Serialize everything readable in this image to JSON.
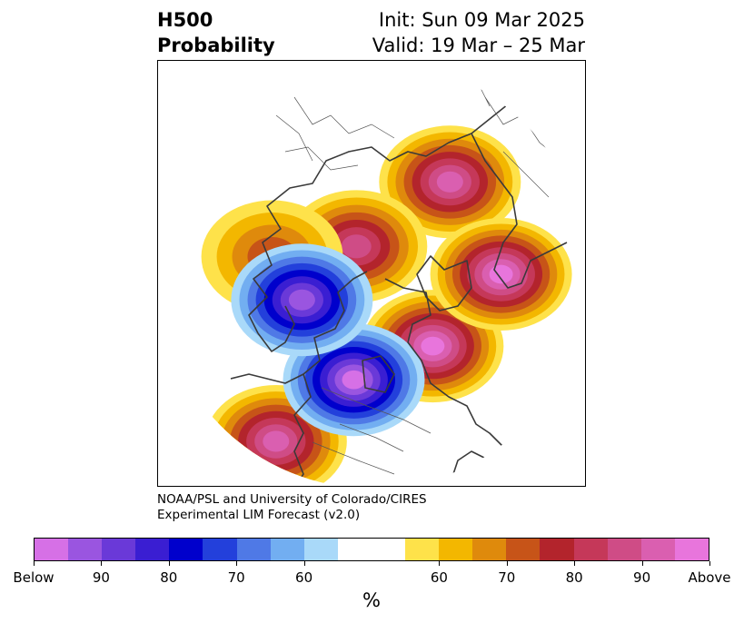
{
  "title": {
    "left_line1": "H500",
    "left_line2": "Probability",
    "right_line1": "Init: Sun 09 Mar 2025",
    "right_line2": "Valid: 19 Mar – 25 Mar"
  },
  "credit": {
    "line1": "NOAA/PSL and University of Colorado/CIRES",
    "line2": "Experimental LIM Forecast (v2.0)"
  },
  "colorbar": {
    "unit": "%",
    "colors": [
      "#d670e6",
      "#9a55e0",
      "#6a39d8",
      "#3a1ed2",
      "#0000cc",
      "#2340db",
      "#4f79e6",
      "#72aef1",
      "#a9d9f9",
      "#ffffff",
      "#ffffff",
      "#fee24a",
      "#f3b700",
      "#df8a0c",
      "#c75418",
      "#b3242c",
      "#c53859",
      "#cf4c86",
      "#da5fb0",
      "#e875dc"
    ],
    "tick_labels": [
      "Below",
      "90",
      "80",
      "70",
      "60",
      "60",
      "70",
      "80",
      "90",
      "Above"
    ]
  },
  "map": {
    "projection": "north-polar-stereographic",
    "anomalies": [
      {
        "label": "positive",
        "lon": -110,
        "lat": 45,
        "peak": 90
      },
      {
        "label": "positive",
        "lon": -40,
        "lat": 78,
        "peak": 85
      },
      {
        "label": "positive",
        "lon": 10,
        "lat": 52,
        "peak": 70
      },
      {
        "label": "positive",
        "lon": 150,
        "lat": 55,
        "peak": 95
      },
      {
        "label": "positive",
        "lon": -160,
        "lat": 42,
        "peak": 95
      },
      {
        "label": "positive",
        "lon": 80,
        "lat": 18,
        "peak": 90
      },
      {
        "label": "negative",
        "lon": 100,
        "lat": 50,
        "peak": 95
      },
      {
        "label": "negative",
        "lon": 40,
        "lat": 62,
        "peak": 90
      }
    ]
  }
}
